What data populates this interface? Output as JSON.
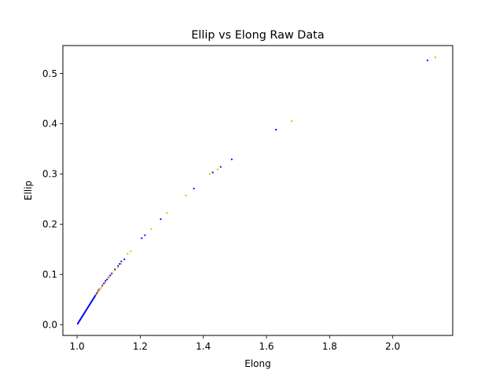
{
  "chart_data": {
    "type": "scatter",
    "title": "Ellip vs Elong Raw Data",
    "xlabel": "Elong",
    "ylabel": "Ellip",
    "xlim": [
      0.955,
      2.19
    ],
    "ylim": [
      -0.0215,
      0.5555
    ],
    "xticks": [
      1.0,
      1.2,
      1.4,
      1.6,
      1.8,
      2.0
    ],
    "xtick_labels": [
      "1.0",
      "1.2",
      "1.4",
      "1.6",
      "1.8",
      "2.0"
    ],
    "yticks": [
      0.0,
      0.1,
      0.2,
      0.3,
      0.4,
      0.5
    ],
    "ytick_labels": [
      "0.0",
      "0.1",
      "0.2",
      "0.3",
      "0.4",
      "0.5"
    ],
    "grid": false,
    "legend": "none",
    "series": [
      {
        "color": "#0000ff",
        "x": [
          1.002,
          1.004,
          1.006,
          1.008,
          1.01,
          1.012,
          1.014,
          1.016,
          1.018,
          1.02,
          1.022,
          1.024,
          1.026,
          1.028,
          1.03,
          1.032,
          1.034,
          1.036,
          1.038,
          1.04,
          1.042,
          1.044,
          1.046,
          1.048,
          1.05,
          1.052,
          1.054,
          1.056,
          1.058,
          1.06,
          1.062,
          1.064,
          1.066,
          1.068,
          1.07,
          1.08,
          1.085,
          1.09,
          1.095,
          1.1,
          1.105,
          1.11,
          1.12,
          1.13,
          1.135,
          1.14,
          1.15,
          1.205,
          1.215,
          1.265,
          1.37,
          1.43,
          1.455,
          1.49,
          1.63,
          2.11
        ],
        "y": [
          0.002,
          0.004,
          0.006,
          0.008,
          0.01,
          0.012,
          0.014,
          0.016,
          0.018,
          0.02,
          0.022,
          0.024,
          0.026,
          0.028,
          0.03,
          0.032,
          0.034,
          0.036,
          0.038,
          0.04,
          0.042,
          0.044,
          0.046,
          0.048,
          0.05,
          0.052,
          0.054,
          0.056,
          0.058,
          0.06,
          0.062,
          0.064,
          0.066,
          0.068,
          0.07,
          0.078,
          0.082,
          0.087,
          0.09,
          0.094,
          0.098,
          0.102,
          0.11,
          0.117,
          0.121,
          0.126,
          0.13,
          0.172,
          0.178,
          0.21,
          0.271,
          0.303,
          0.314,
          0.329,
          0.388,
          0.526
        ]
      },
      {
        "color": "#ffa500",
        "x": [
          1.06,
          1.065,
          1.068,
          1.072,
          1.076,
          1.08,
          1.09,
          1.1,
          1.11,
          1.12,
          1.13,
          1.14,
          1.16,
          1.17,
          1.235,
          1.285,
          1.345,
          1.42,
          1.445,
          1.68,
          2.135
        ],
        "y": [
          0.06,
          0.064,
          0.067,
          0.07,
          0.073,
          0.076,
          0.084,
          0.093,
          0.1,
          0.108,
          0.114,
          0.121,
          0.141,
          0.146,
          0.19,
          0.222,
          0.257,
          0.3,
          0.309,
          0.405,
          0.532
        ]
      }
    ]
  }
}
